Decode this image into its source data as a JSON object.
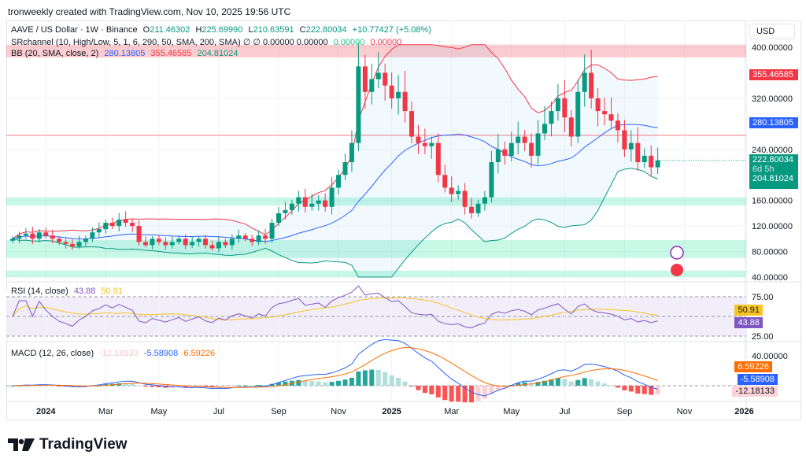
{
  "credit": "tronweekly created with TradingView.com, Nov 10, 2025 19:56 UTC",
  "legend": {
    "symbol": "AAVE / US Dollar · 1W · Binance",
    "o_label": "O",
    "o": "211.46302",
    "h_label": "H",
    "h": "225.69990",
    "l_label": "L",
    "l": "210.63591",
    "c_label": "C",
    "c": "222.80034",
    "change": "+10.77427 (+5.08%)",
    "sr": "SRchannel (10, High/Low, 5, 1, 6, 290, 50, SMA, 200, SMA)  ∅  ∅  0.00000  0.00000",
    "sr_g": "0.00000",
    "sr_r": "0.00000",
    "bb": "BB (20, SMA, close, 2)",
    "bb_mid": "280.13805",
    "bb_up": "355.46585",
    "bb_lo": "204.81024",
    "rsi": "RSI (14, close)",
    "rsi_v": "43.88",
    "rsi_ma": "50.91",
    "macd": "MACD (12, 26, close)",
    "macd_h": "-12.18133",
    "macd_m": "-5.58908",
    "macd_s": "6.59226"
  },
  "currency": "USD",
  "tags": {
    "bb_up": "355.46585",
    "bb_mid": "280.13805",
    "price": "222.80034",
    "countdown": "6d 5h",
    "bb_lo": "204.81024",
    "rsi_ma": "50.91",
    "rsi": "43.88",
    "macd_s": "6.59226",
    "macd_m": "-5.58908",
    "macd_h": "-12.18133"
  },
  "colors": {
    "up": "#089981",
    "down": "#f23645",
    "bb_mid": "#2962ff",
    "rsi": "#7e57c2",
    "rsi_ma": "#f7c325",
    "signal": "#ff6d00"
  },
  "logo": "TradingView",
  "chart_data": {
    "type": "candlestick",
    "interval": "1W",
    "ylim": [
      40,
      400
    ],
    "price_ticks": [
      "400.00000",
      "320.00000",
      "240.00000",
      "160.00000",
      "120.00000",
      "80.00000",
      "40.00000"
    ],
    "price_tick_values": [
      400,
      320,
      240,
      160,
      120,
      80,
      40
    ],
    "rsi_ticks": [
      "75.00",
      "25.00"
    ],
    "macd_ticks": [
      "40.00000"
    ],
    "time_ticks": [
      "2024",
      "Mar",
      "May",
      "Jul",
      "Sep",
      "Nov",
      "2025",
      "Mar",
      "May",
      "Jul",
      "Sep",
      "Nov",
      "2026"
    ],
    "time_tick_weeks": [
      5,
      14,
      22,
      31,
      40,
      49,
      57,
      66,
      75,
      83,
      92,
      101,
      110
    ],
    "closes": [
      100,
      105,
      108,
      100,
      110,
      105,
      100,
      95,
      92,
      88,
      95,
      100,
      110,
      115,
      125,
      120,
      130,
      125,
      120,
      95,
      90,
      100,
      95,
      90,
      95,
      100,
      90,
      95,
      100,
      90,
      85,
      95,
      90,
      100,
      105,
      100,
      95,
      105,
      100,
      125,
      140,
      145,
      155,
      165,
      150,
      155,
      160,
      150,
      180,
      200,
      220,
      250,
      370,
      330,
      350,
      360,
      340,
      320,
      330,
      300,
      260,
      250,
      245,
      250,
      200,
      180,
      170,
      175,
      150,
      140,
      155,
      165,
      220,
      240,
      230,
      250,
      260,
      250,
      230,
      265,
      280,
      300,
      320,
      290,
      260,
      330,
      360,
      320,
      300,
      295,
      285,
      270,
      240,
      250,
      220,
      230,
      212,
      222.8
    ],
    "zones": [
      {
        "lo": 384,
        "hi": 404,
        "type": "resistance"
      },
      {
        "lo": 152,
        "hi": 165,
        "type": "support"
      },
      {
        "lo": 70,
        "hi": 98,
        "type": "support"
      },
      {
        "lo": 40,
        "hi": 50,
        "type": "support"
      }
    ],
    "hline": 262
  }
}
